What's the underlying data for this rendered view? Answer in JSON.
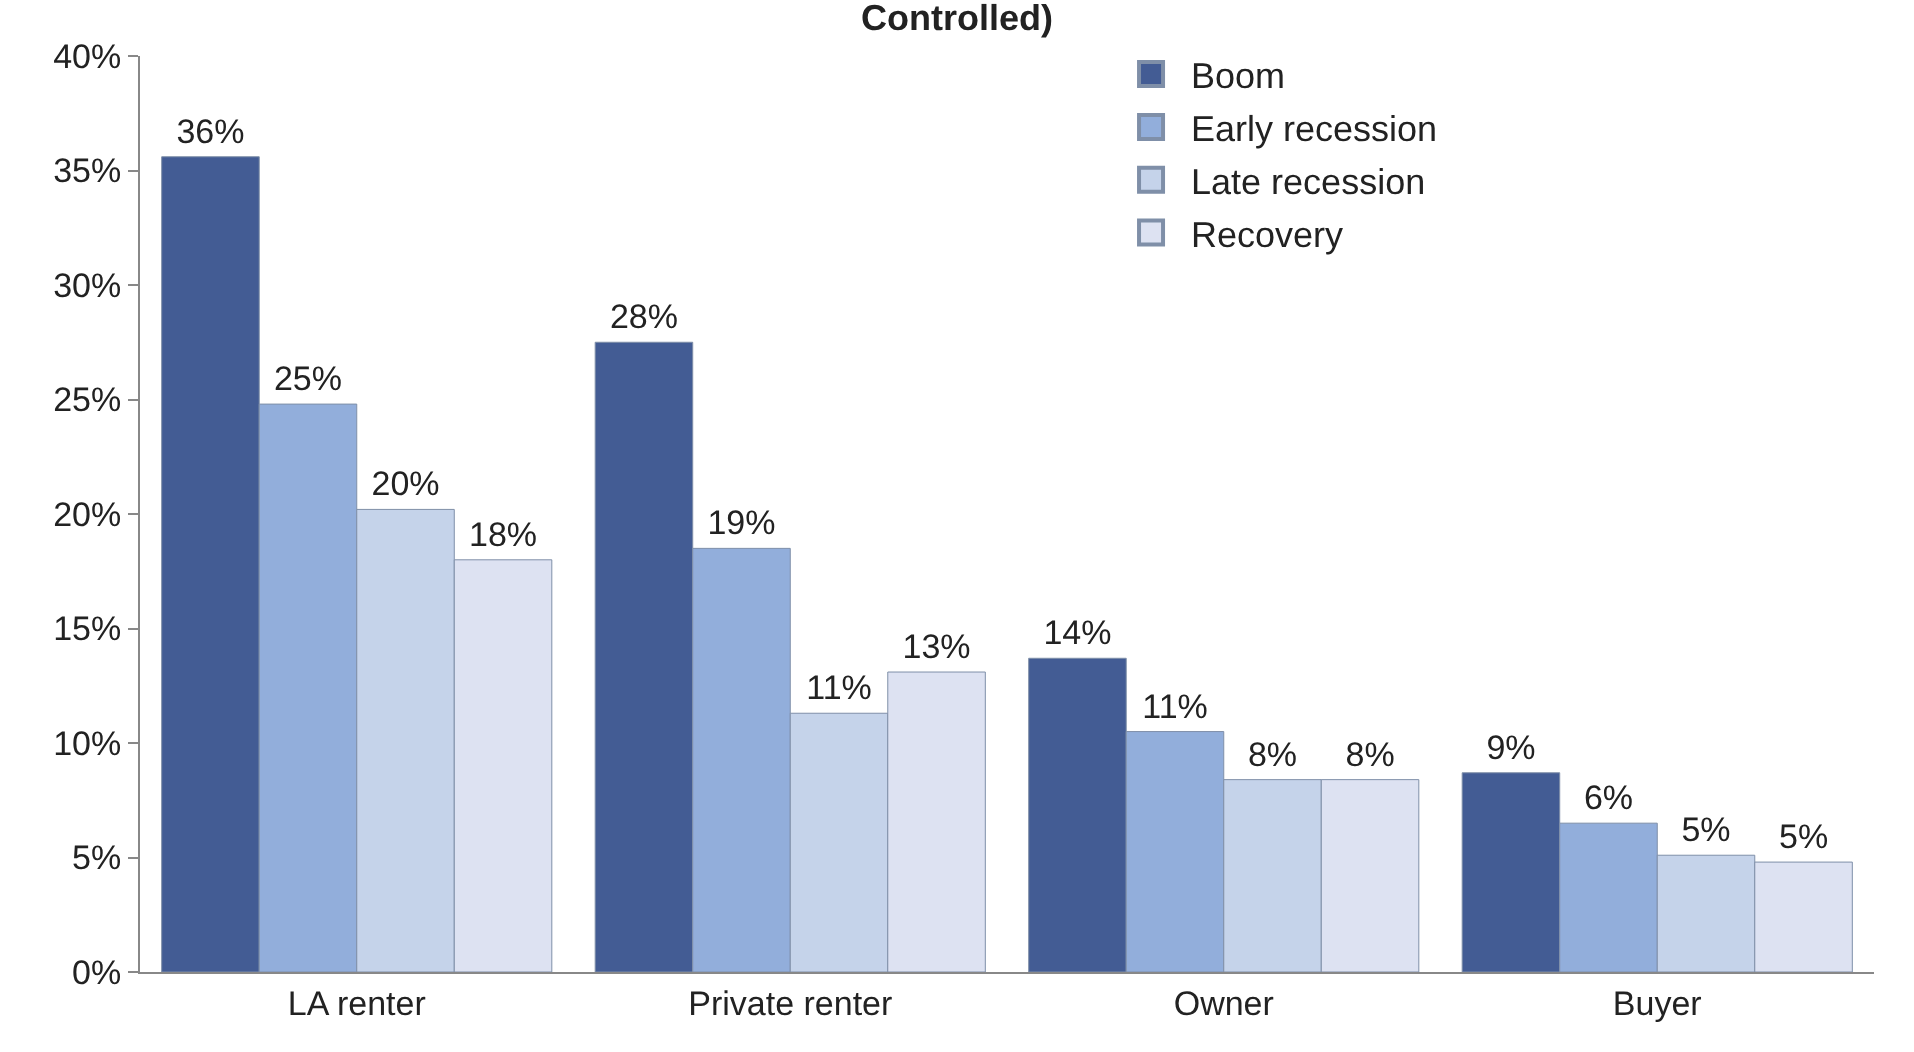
{
  "chart_data": {
    "type": "bar",
    "title": "Controlled)",
    "categories": [
      "LA renter",
      "Private renter",
      "Owner",
      "Buyer"
    ],
    "series": [
      {
        "name": "Boom",
        "color": "#435c94",
        "values": [
          35.6,
          27.5,
          13.7,
          8.7
        ],
        "value_labels": [
          "36%",
          "28%",
          "14%",
          "9%"
        ]
      },
      {
        "name": "Early recession",
        "color": "#92aedb",
        "values": [
          24.8,
          18.5,
          10.5,
          6.5
        ],
        "value_labels": [
          "25%",
          "19%",
          "11%",
          "6%"
        ]
      },
      {
        "name": "Late recession",
        "color": "#c5d3ea",
        "values": [
          20.2,
          11.3,
          8.4,
          5.1
        ],
        "value_labels": [
          "20%",
          "11%",
          "8%",
          "5%"
        ]
      },
      {
        "name": "Recovery",
        "color": "#dde2f2",
        "values": [
          18.0,
          13.1,
          8.4,
          4.8
        ],
        "value_labels": [
          "18%",
          "13%",
          "8%",
          "5%"
        ]
      }
    ],
    "ylim": [
      0,
      40
    ],
    "yticks": [
      {
        "value": 0,
        "label": "0%"
      },
      {
        "value": 5,
        "label": "5%"
      },
      {
        "value": 10,
        "label": "10%"
      },
      {
        "value": 15,
        "label": "15%"
      },
      {
        "value": 20,
        "label": "20%"
      },
      {
        "value": 25,
        "label": "25%"
      },
      {
        "value": 30,
        "label": "30%"
      },
      {
        "value": 35,
        "label": "35%"
      },
      {
        "value": 40,
        "label": "40%"
      }
    ],
    "legend": "top right"
  }
}
